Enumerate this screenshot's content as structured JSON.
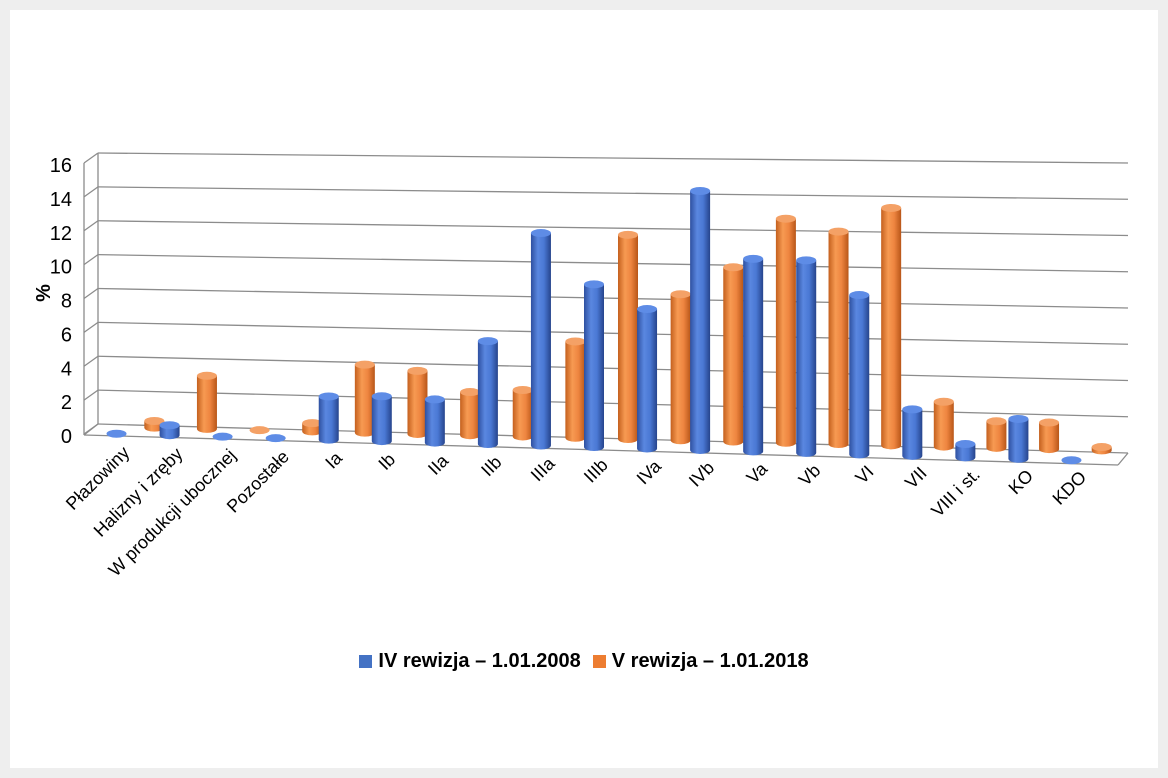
{
  "chart_data": {
    "type": "bar",
    "ylabel": "%",
    "ylim": [
      0,
      16
    ],
    "yticks": [
      "0",
      "2",
      "4",
      "6",
      "8",
      "10",
      "12",
      "14",
      "16"
    ],
    "grid": true,
    "legend_position": "bottom",
    "categories": [
      "Płazowiny",
      "Halizny i zręby",
      "W produkcji ubocznej",
      "Pozostałe",
      "Ia",
      "Ib",
      "IIa",
      "IIb",
      "IIIa",
      "IIIb",
      "IVa",
      "IVb",
      "Va",
      "Vb",
      "VI",
      "VII",
      "VIII i st.",
      "KO",
      "KDO"
    ],
    "series": [
      {
        "name": "IV rewizja – 1.01.2008",
        "color": "#4472c4",
        "values": [
          0,
          0.6,
          0,
          0,
          2.6,
          2.7,
          2.6,
          6.2,
          12.8,
          9.8,
          8.4,
          15.6,
          11.6,
          11.6,
          9.6,
          2.8,
          0.8,
          2.4,
          0
        ]
      },
      {
        "name": "V rewizja – 1.01.2018",
        "color": "#ed7d31",
        "values": [
          0.4,
          3.2,
          0,
          0.5,
          4.1,
          3.8,
          2.6,
          2.8,
          5.8,
          12.3,
          8.8,
          10.5,
          13.5,
          12.8,
          14.3,
          2.7,
          1.6,
          1.6,
          0.2
        ]
      }
    ]
  }
}
